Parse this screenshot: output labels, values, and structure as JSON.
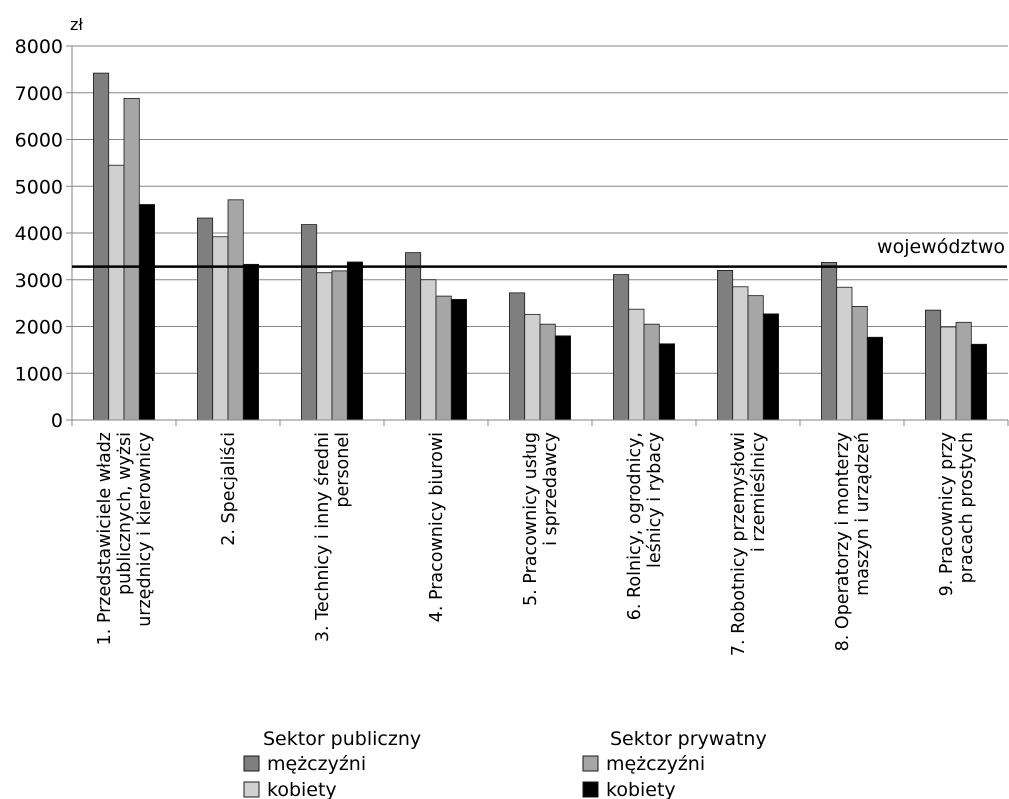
{
  "chart_data": {
    "type": "bar",
    "unit_label": "zł",
    "ylim": [
      0,
      8000
    ],
    "y_ticks": [
      0,
      1000,
      2000,
      3000,
      4000,
      5000,
      6000,
      7000,
      8000
    ],
    "grid": true,
    "reference_line": {
      "label": "województwo",
      "value": 3280
    },
    "categories": [
      [
        "1. Przedstawiciele władz",
        "publicznych, wyżsi",
        "urzędnicy i kierownicy"
      ],
      [
        "2. Specjaliści"
      ],
      [
        "3. Technicy i inny średni",
        "personel"
      ],
      [
        "4. Pracownicy biurowi"
      ],
      [
        "5. Pracownicy usług",
        "i sprzedawcy"
      ],
      [
        "6. Rolnicy, ogrodnicy,",
        "leśnicy i rybacy"
      ],
      [
        "7. Robotnicy przemysłowi",
        "i rzemieślnicy"
      ],
      [
        "8. Operatorzy i monterzy",
        "maszyn i urządzeń"
      ],
      [
        "9. Pracownicy przy",
        "pracach prostych"
      ]
    ],
    "series": [
      {
        "name": "mężczyźni",
        "group": "Sektor publiczny",
        "color": "#7f7f7f",
        "values": [
          7420,
          4320,
          4180,
          3580,
          2720,
          3110,
          3200,
          3370,
          2350
        ]
      },
      {
        "name": "kobiety",
        "group": "Sektor publiczny",
        "color": "#d0d0d0",
        "values": [
          5450,
          3920,
          3150,
          3000,
          2260,
          2370,
          2850,
          2840,
          1990
        ]
      },
      {
        "name": "mężczyźni",
        "group": "Sektor prywatny",
        "color": "#a6a6a6",
        "values": [
          6880,
          4710,
          3190,
          2650,
          2050,
          2050,
          2660,
          2430,
          2090
        ]
      },
      {
        "name": "kobiety",
        "group": "Sektor prywatny",
        "color": "#000000",
        "values": [
          4610,
          3330,
          3380,
          2580,
          1800,
          1630,
          2270,
          1770,
          1620
        ]
      }
    ],
    "legend": {
      "placement": "bottom",
      "groups": [
        {
          "title": "Sektor publiczny",
          "entries": [
            {
              "label": "mężczyźni",
              "color": "#7f7f7f"
            },
            {
              "label": "kobiety",
              "color": "#d0d0d0"
            }
          ]
        },
        {
          "title": "Sektor prywatny",
          "entries": [
            {
              "label": "mężczyźni",
              "color": "#a6a6a6"
            },
            {
              "label": "kobiety",
              "color": "#000000"
            }
          ]
        }
      ]
    }
  }
}
